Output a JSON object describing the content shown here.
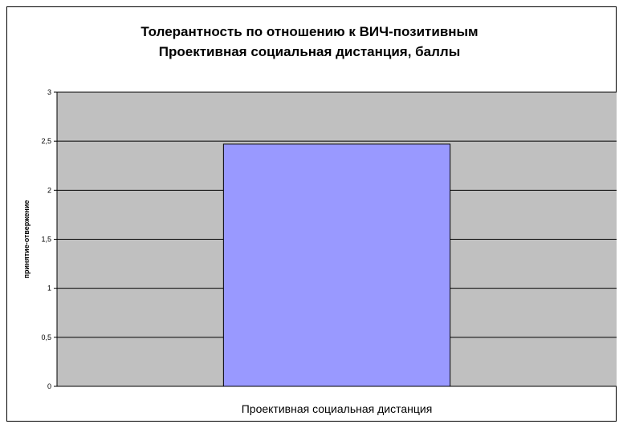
{
  "chart_data": {
    "type": "bar",
    "title_lines": [
      "Толерантность по отношению к ВИЧ-позитивным",
      "Проективная социальная дистанция, баллы"
    ],
    "categories": [
      "Проективная социальная дистанция"
    ],
    "values": [
      2.47
    ],
    "ylabel": "принятие-отвержение",
    "xlabel": "",
    "ylim": [
      0,
      3
    ],
    "yticks": [
      "0",
      "0,5",
      "1",
      "1,5",
      "2",
      "2,5",
      "3"
    ],
    "grid": true,
    "legend": "none",
    "colors": {
      "plot_bg": "#c0c0c0",
      "bar": "#9999ff",
      "gridline": "#000000"
    }
  }
}
